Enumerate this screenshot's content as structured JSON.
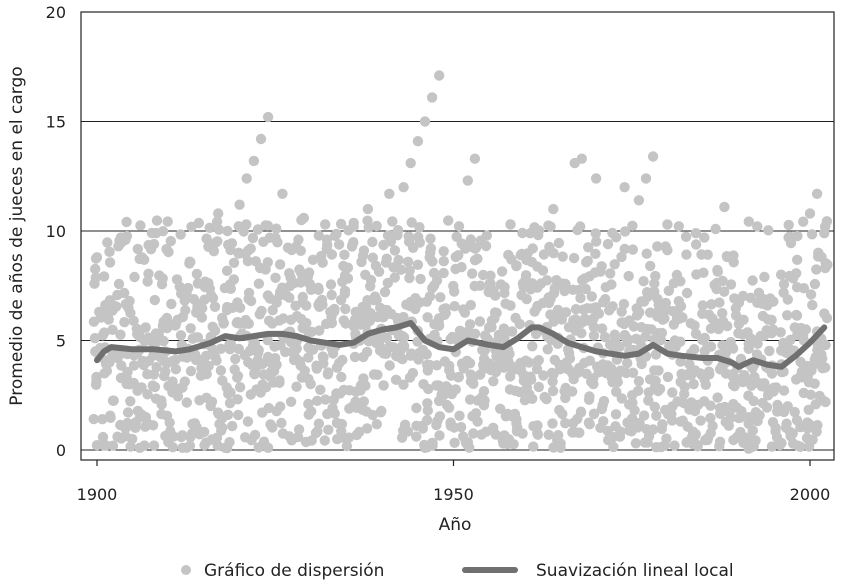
{
  "chart_data": {
    "type": "scatter",
    "title": "",
    "xlabel": "Año",
    "ylabel": "Promedio de años de jueces en el cargo",
    "xlim": [
      1900,
      2003
    ],
    "ylim": [
      0,
      20
    ],
    "xticks": [
      "1900",
      "1950",
      "2000"
    ],
    "yticks": [
      "0",
      "5",
      "10",
      "15",
      "20"
    ],
    "grid": "horizontal",
    "legend": [
      {
        "label": "Gráfico de dispersión",
        "kind": "marker",
        "color": "#c4c4c4"
      },
      {
        "label": "Suavización lineal local",
        "kind": "line",
        "color": "#707070"
      }
    ],
    "scatter_color": "#c4c4c4",
    "smooth_color": "#707070",
    "scatter_points_per_year": 16,
    "highlight_points": [
      {
        "x": 1900,
        "y": 8.8
      },
      {
        "x": 1903,
        "y": 9.3
      },
      {
        "x": 1904,
        "y": 9.6
      },
      {
        "x": 1908,
        "y": 9.4
      },
      {
        "x": 1913,
        "y": 8.6
      },
      {
        "x": 1917,
        "y": 10.8
      },
      {
        "x": 1920,
        "y": 11.2
      },
      {
        "x": 1921,
        "y": 12.4
      },
      {
        "x": 1922,
        "y": 13.2
      },
      {
        "x": 1923,
        "y": 14.2
      },
      {
        "x": 1924,
        "y": 15.2
      },
      {
        "x": 1926,
        "y": 11.7
      },
      {
        "x": 1929,
        "y": 10.6
      },
      {
        "x": 1932,
        "y": 10.3
      },
      {
        "x": 1936,
        "y": 10.2
      },
      {
        "x": 1938,
        "y": 11.0
      },
      {
        "x": 1941,
        "y": 11.7
      },
      {
        "x": 1943,
        "y": 12.0
      },
      {
        "x": 1944,
        "y": 13.1
      },
      {
        "x": 1945,
        "y": 14.1
      },
      {
        "x": 1946,
        "y": 15.0
      },
      {
        "x": 1947,
        "y": 16.1
      },
      {
        "x": 1948,
        "y": 17.1
      },
      {
        "x": 1952,
        "y": 12.3
      },
      {
        "x": 1953,
        "y": 13.3
      },
      {
        "x": 1958,
        "y": 10.3
      },
      {
        "x": 1964,
        "y": 11.0
      },
      {
        "x": 1967,
        "y": 13.1
      },
      {
        "x": 1968,
        "y": 13.3
      },
      {
        "x": 1970,
        "y": 12.4
      },
      {
        "x": 1974,
        "y": 12.0
      },
      {
        "x": 1976,
        "y": 11.4
      },
      {
        "x": 1977,
        "y": 12.4
      },
      {
        "x": 1978,
        "y": 13.4
      },
      {
        "x": 1980,
        "y": 10.3
      },
      {
        "x": 1984,
        "y": 9.9
      },
      {
        "x": 1988,
        "y": 11.1
      },
      {
        "x": 1997,
        "y": 9.7
      },
      {
        "x": 2000,
        "y": 10.8
      },
      {
        "x": 2001,
        "y": 11.7
      },
      {
        "x": 2002,
        "y": 9.9
      },
      {
        "x": 1901,
        "y": 0.2
      },
      {
        "x": 1906,
        "y": 0.1
      },
      {
        "x": 1908,
        "y": 0.2
      },
      {
        "x": 1912,
        "y": 0.1
      },
      {
        "x": 1918,
        "y": 0.1
      },
      {
        "x": 1924,
        "y": 0.1
      },
      {
        "x": 1946,
        "y": 0.1
      },
      {
        "x": 1952,
        "y": 0.2
      },
      {
        "x": 1957,
        "y": 0.3
      },
      {
        "x": 1965,
        "y": 0.1
      },
      {
        "x": 1981,
        "y": 0.2
      }
    ],
    "smooth_line": {
      "x": [
        1900,
        1901,
        1902,
        1905,
        1908,
        1911,
        1913,
        1916,
        1918,
        1920,
        1922,
        1924,
        1926,
        1928,
        1930,
        1932,
        1934,
        1936,
        1938,
        1940,
        1942,
        1944,
        1946,
        1948,
        1950,
        1952,
        1955,
        1957,
        1959,
        1961,
        1962,
        1964,
        1966,
        1968,
        1970,
        1972,
        1974,
        1976,
        1978,
        1980,
        1982,
        1985,
        1987,
        1989,
        1990,
        1992,
        1994,
        1996,
        1998,
        2000,
        2002
      ],
      "y": [
        4.1,
        4.5,
        4.7,
        4.6,
        4.6,
        4.5,
        4.6,
        4.9,
        5.2,
        5.1,
        5.2,
        5.3,
        5.3,
        5.2,
        5.0,
        4.9,
        4.8,
        4.9,
        5.3,
        5.5,
        5.6,
        5.8,
        5.0,
        4.7,
        4.6,
        5.0,
        4.8,
        4.7,
        5.1,
        5.6,
        5.6,
        5.3,
        4.9,
        4.7,
        4.5,
        4.4,
        4.3,
        4.4,
        4.8,
        4.4,
        4.3,
        4.2,
        4.2,
        4.0,
        3.8,
        4.1,
        3.9,
        3.8,
        4.3,
        4.9,
        5.6
      ]
    }
  }
}
